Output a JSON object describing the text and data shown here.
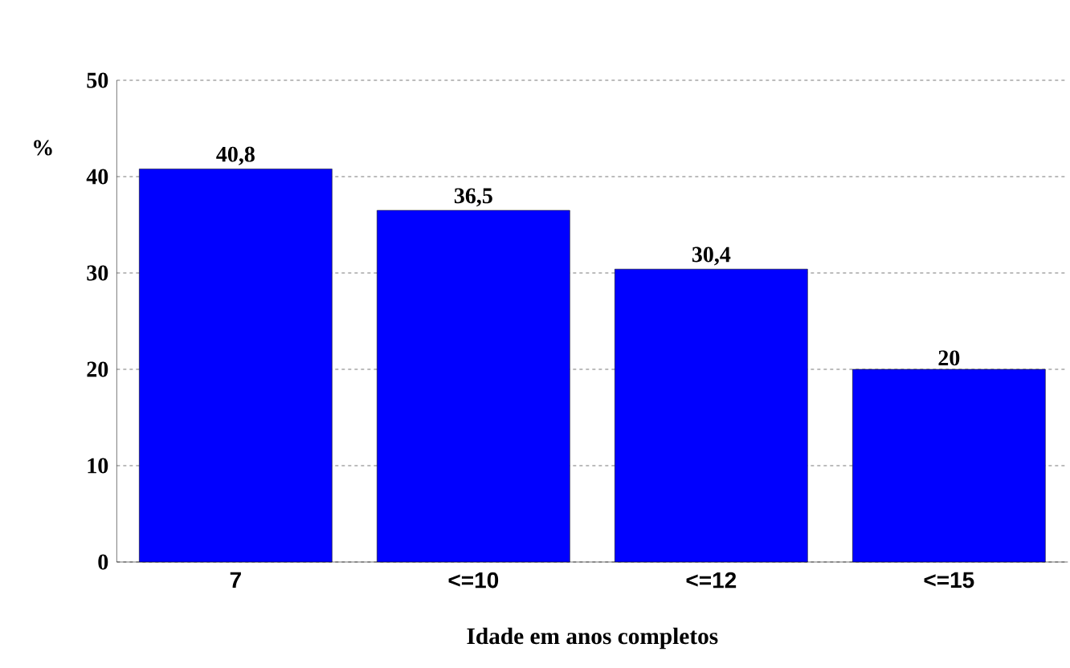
{
  "chart_data": {
    "type": "bar",
    "xlabel": "Idade em anos completos",
    "ylabel": "%",
    "categories": [
      "7",
      "<=10",
      "<=12",
      "<=15"
    ],
    "values": [
      40.8,
      36.5,
      30.4,
      20
    ],
    "value_labels": [
      "40,8",
      "36,5",
      "30,4",
      "20"
    ],
    "color": "#0000ff",
    "ylim": [
      0,
      50
    ],
    "yticks": [
      0,
      10,
      20,
      30,
      40,
      50
    ],
    "grid": "y",
    "line_style": "dashed"
  }
}
